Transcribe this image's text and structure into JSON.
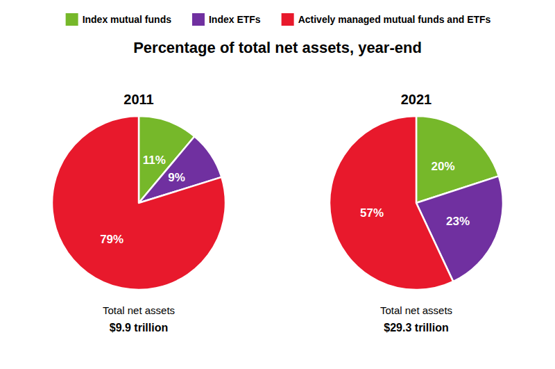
{
  "chart_data": {
    "type": "pie",
    "title": "Percentage of total net assets, year-end",
    "categories": [
      "Index mutual funds",
      "Index ETFs",
      "Actively managed mutual funds and ETFs"
    ],
    "colors": [
      "#76b82a",
      "#7030a0",
      "#e8192c"
    ],
    "legend": "top",
    "data_labels": true,
    "series": [
      {
        "name": "2011",
        "values": [
          11,
          9,
          79
        ],
        "value_labels": [
          "11%",
          "9%",
          "79%"
        ],
        "annotations": [
          "Total net assets",
          "$9.9 trillion"
        ]
      },
      {
        "name": "2021",
        "values": [
          20,
          23,
          57
        ],
        "value_labels": [
          "20%",
          "23%",
          "57%"
        ],
        "annotations": [
          "Total net assets",
          "$29.3 trillion"
        ]
      }
    ]
  }
}
